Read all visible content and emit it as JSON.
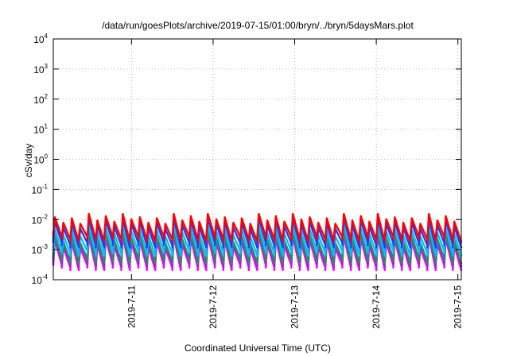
{
  "chart_data": {
    "type": "line",
    "title": "/data/run/goesPlots/archive/2019-07-15/01:00/bryn/../bryn/5daysMars.plot",
    "xlabel": "Coordinated Universal Time (UTC)",
    "ylabel": "cSv/day",
    "yscale": "log",
    "ylim": [
      0.0001,
      10000
    ],
    "y_ticks": [
      {
        "base": "10",
        "exp": "-4",
        "value": 0.0001
      },
      {
        "base": "10",
        "exp": "-3",
        "value": 0.001
      },
      {
        "base": "10",
        "exp": "-2",
        "value": 0.01
      },
      {
        "base": "10",
        "exp": "-1",
        "value": 0.1
      },
      {
        "base": "10",
        "exp": "0",
        "value": 1
      },
      {
        "base": "10",
        "exp": "1",
        "value": 10
      },
      {
        "base": "10",
        "exp": "2",
        "value": 100
      },
      {
        "base": "10",
        "exp": "3",
        "value": 1000
      },
      {
        "base": "10",
        "exp": "4",
        "value": 10000
      }
    ],
    "xlim": [
      "2019-07-10 01:00",
      "2019-07-15 01:00"
    ],
    "x_ticks": [
      "2019-7-11",
      "2019-7-12",
      "2019-7-13",
      "2019-7-14",
      "2019-7-15"
    ],
    "x_tick_dates": [
      "2019-07-11",
      "2019-07-12",
      "2019-07-13",
      "2019-07-14",
      "2019-07-15"
    ],
    "grid": true,
    "sawtooth_cycles": 48,
    "series": [
      {
        "color": "#ff00ff",
        "peak": 0.0021,
        "trough": 0.00025
      },
      {
        "color": "#a020f0",
        "peak": 0.0025,
        "trough": 0.00033
      },
      {
        "color": "#2e8b57",
        "peak": 0.003,
        "trough": 0.00042
      },
      {
        "color": "#00bfff",
        "peak": 0.0048,
        "trough": 0.00075
      },
      {
        "color": "#1e3cff",
        "peak": 0.0085,
        "trough": 0.0014
      },
      {
        "color": "#ff0000",
        "peak": 0.012,
        "trough": 0.0022
      }
    ]
  }
}
